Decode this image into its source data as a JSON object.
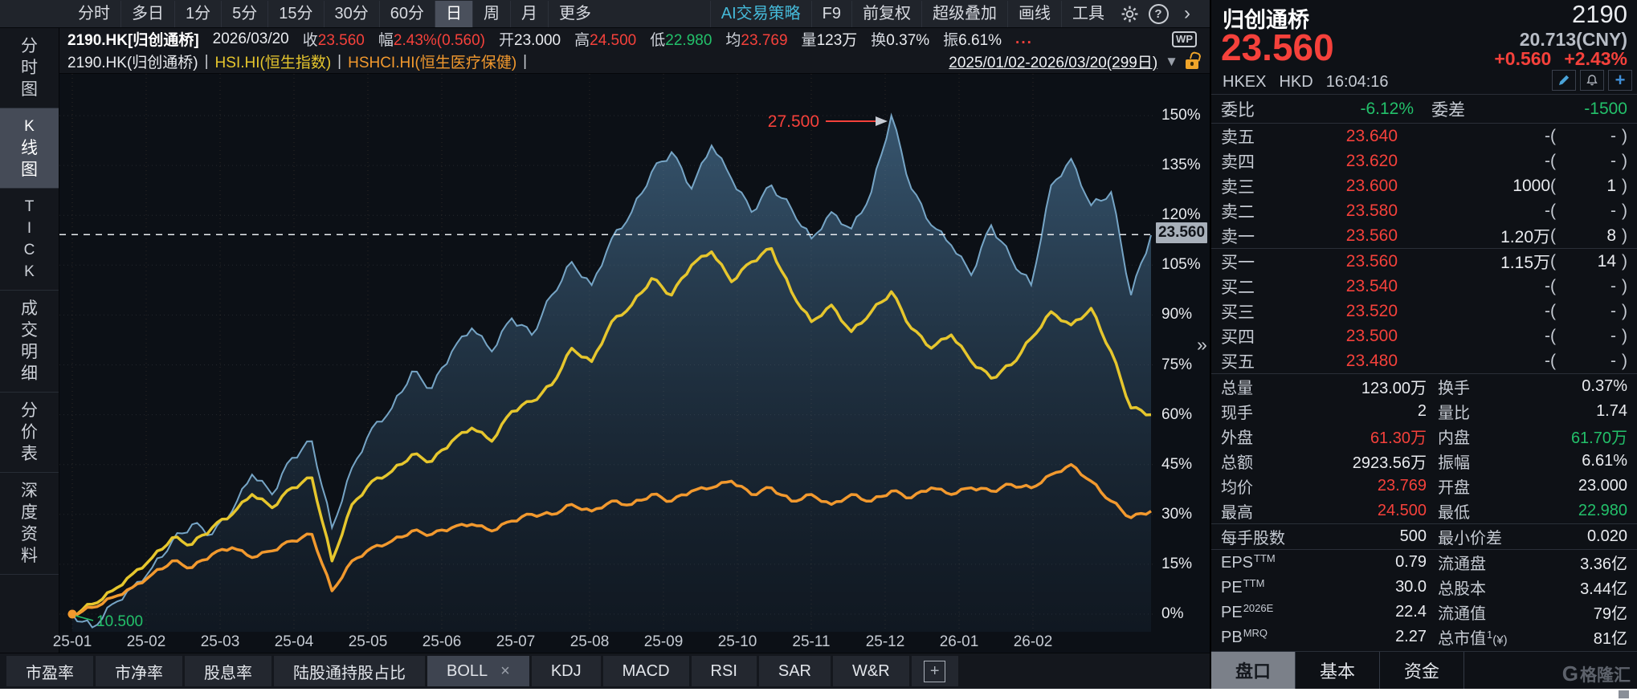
{
  "colors": {
    "red": "#f5413b",
    "green": "#23c06a",
    "white": "#e9ebef",
    "yellow": "#e6c62d",
    "orange": "#f2992e",
    "cyan": "#45b9d8",
    "gray": "#c6cbd3",
    "blue_line": "#76a5c6",
    "tag_bg": "#a8b0ba"
  },
  "toolbar_top": {
    "periods": [
      "分时",
      "多日",
      "1分",
      "5分",
      "15分",
      "30分",
      "60分",
      "日",
      "周",
      "月",
      "更多"
    ],
    "selected_period": "日",
    "actions": [
      "AI交易策略",
      "F9",
      "前复权",
      "超级叠加",
      "画线",
      "工具"
    ],
    "help_label": "?",
    "expand_label": "›"
  },
  "quote_bar": {
    "symbol": "2190.HK[归创通桥]",
    "date": "2026/03/20",
    "fields": [
      {
        "label": "收",
        "value": "23.560",
        "color": "red"
      },
      {
        "label": "幅",
        "value": "2.43%(0.560)",
        "color": "red"
      },
      {
        "label": "开",
        "value": "23.000",
        "color": "white"
      },
      {
        "label": "高",
        "value": "24.500",
        "color": "red"
      },
      {
        "label": "低",
        "value": "22.980",
        "color": "green"
      },
      {
        "label": "均",
        "value": "23.769",
        "color": "red"
      },
      {
        "label": "量",
        "value": "123万",
        "color": "white"
      },
      {
        "label": "换",
        "value": "0.37%",
        "color": "white"
      },
      {
        "label": "振",
        "value": "6.61%",
        "color": "white"
      }
    ],
    "more": "...",
    "wp_label": "WP"
  },
  "overlay_bar": {
    "items": [
      {
        "text": "2190.HK(归创通桥)",
        "color": "white"
      },
      {
        "text": "HSI.HI(恒生指数)",
        "color": "yellow"
      },
      {
        "text": "HSHCI.HI(恒生医疗保健)",
        "color": "orange"
      }
    ],
    "date_range": "2025/01/02-2026/03/20(299日)",
    "dropdown": "▼"
  },
  "sidebar": {
    "items": [
      "分时图",
      "K线图",
      "TICK",
      "成交明细",
      "分价表",
      "深度资料"
    ],
    "selected": "K线图"
  },
  "chart_data": {
    "type": "line",
    "title": "2190.HK vs HSI.HI vs HSHCI.HI cumulative % change",
    "x_labels": [
      "25-01",
      "25-02",
      "25-03",
      "25-04",
      "25-05",
      "25-06",
      "25-07",
      "25-08",
      "25-09",
      "25-10",
      "25-11",
      "25-12",
      "26-01",
      "26-02"
    ],
    "y_ticks": [
      "150%",
      "135%",
      "120%",
      "105%",
      "90%",
      "75%",
      "60%",
      "45%",
      "30%",
      "15%",
      "0%"
    ],
    "ylim": [
      -12,
      162
    ],
    "grid": "dotted",
    "series": [
      {
        "name": "2190.HK",
        "color": "#76a5c6",
        "area": true,
        "values": [
          0,
          -4,
          3,
          8,
          14,
          22,
          27,
          24,
          31,
          42,
          36,
          47,
          52,
          26,
          44,
          56,
          62,
          73,
          68,
          79,
          86,
          79,
          89,
          84,
          96,
          106,
          99,
          113,
          121,
          133,
          139,
          128,
          141,
          131,
          121,
          129,
          122,
          113,
          121,
          116,
          127,
          150,
          128,
          117,
          111,
          102,
          117,
          107,
          99,
          129,
          137,
          123,
          127,
          96,
          114
        ]
      },
      {
        "name": "HSI.HI",
        "color": "#e6c62d",
        "values": [
          0,
          3,
          7,
          12,
          17,
          23,
          21,
          26,
          30,
          36,
          32,
          38,
          41,
          16,
          33,
          40,
          43,
          48,
          46,
          52,
          56,
          52,
          61,
          64,
          69,
          80,
          76,
          88,
          93,
          101,
          96,
          105,
          109,
          100,
          106,
          110,
          97,
          88,
          93,
          85,
          91,
          97,
          86,
          80,
          84,
          76,
          71,
          75,
          83,
          91,
          87,
          92,
          79,
          62,
          60
        ]
      },
      {
        "name": "HSHCI.HI",
        "color": "#f2992e",
        "values": [
          0,
          2,
          5,
          8,
          12,
          16,
          14,
          18,
          20,
          17,
          19,
          22,
          24,
          7,
          16,
          20,
          22,
          25,
          24,
          26,
          27,
          25,
          28,
          30,
          30,
          33,
          31,
          34,
          33,
          36,
          34,
          37,
          38,
          40,
          36,
          38,
          34,
          36,
          33,
          36,
          34,
          37,
          35,
          38,
          36,
          38,
          37,
          39,
          38,
          42,
          45,
          40,
          34,
          29,
          31
        ]
      }
    ],
    "annotations": {
      "high_price": "27.500",
      "low_price": "10.500",
      "current_price": "23.560",
      "current_pct": 114.2
    }
  },
  "bottom_toolbar": {
    "items": [
      "市盈率",
      "市净率",
      "股息率",
      "陆股通持股占比",
      "BOLL",
      "KDJ",
      "MACD",
      "RSI",
      "SAR",
      "W&R"
    ],
    "selected": "BOLL",
    "close_label": "×",
    "add_label": "+"
  },
  "collapse_label": "»",
  "right_panel": {
    "header": {
      "name": "归创通桥",
      "code": "2190",
      "price": "23.560",
      "cny": "20.713(CNY)",
      "change": "+0.560",
      "change_pct": "+2.43%",
      "exchange": "HKEX",
      "currency": "HKD",
      "time": "16:04:16"
    },
    "weibi": {
      "label": "委比",
      "value": "-6.12%",
      "label2": "委差",
      "value2": "-1500"
    },
    "order_book": {
      "asks": [
        {
          "label": "卖五",
          "price": "23.640",
          "volume": "-",
          "count": "-"
        },
        {
          "label": "卖四",
          "price": "23.620",
          "volume": "-",
          "count": "-"
        },
        {
          "label": "卖三",
          "price": "23.600",
          "volume": "1000",
          "count": "1"
        },
        {
          "label": "卖二",
          "price": "23.580",
          "volume": "-",
          "count": "-"
        },
        {
          "label": "卖一",
          "price": "23.560",
          "volume": "1.20万",
          "count": "8"
        }
      ],
      "bids": [
        {
          "label": "买一",
          "price": "23.560",
          "volume": "1.15万",
          "count": "14"
        },
        {
          "label": "买二",
          "price": "23.540",
          "volume": "-",
          "count": "-"
        },
        {
          "label": "买三",
          "price": "23.520",
          "volume": "-",
          "count": "-"
        },
        {
          "label": "买四",
          "price": "23.500",
          "volume": "-",
          "count": "-"
        },
        {
          "label": "买五",
          "price": "23.480",
          "volume": "-",
          "count": "-"
        }
      ]
    },
    "stats": [
      {
        "l": "总量",
        "lv": "123.00万",
        "lc": "white",
        "r": "换手",
        "rv": "0.37%",
        "rc": "white"
      },
      {
        "l": "现手",
        "lv": "2",
        "lc": "white",
        "r": "量比",
        "rv": "1.74",
        "rc": "white"
      },
      {
        "l": "外盘",
        "lv": "61.30万",
        "lc": "red",
        "r": "内盘",
        "rv": "61.70万",
        "rc": "green"
      },
      {
        "l": "总额",
        "lv": "2923.56万",
        "lc": "white",
        "r": "振幅",
        "rv": "6.61%",
        "rc": "white"
      },
      {
        "l": "均价",
        "lv": "23.769",
        "lc": "red",
        "r": "开盘",
        "rv": "23.000",
        "rc": "white"
      },
      {
        "l": "最高",
        "lv": "24.500",
        "lc": "red",
        "r": "最低",
        "rv": "22.980",
        "rc": "green"
      },
      {
        "l": "每手股数",
        "lv": "500",
        "lc": "white",
        "r": "最小价差",
        "rv": "0.020",
        "rc": "white",
        "div": true
      },
      {
        "l": "EPS",
        "lsup": "TTM",
        "lv": "0.79",
        "lc": "white",
        "r": "流通盘",
        "rv": "3.36亿",
        "rc": "white",
        "div": true
      },
      {
        "l": "PE",
        "lsup": "TTM",
        "lv": "30.0",
        "lc": "white",
        "r": "总股本",
        "rv": "3.44亿",
        "rc": "white"
      },
      {
        "l": "PE",
        "lsup": "2026E",
        "lv": "22.4",
        "lc": "white",
        "r": "流通值",
        "rv": "79亿",
        "rc": "white"
      },
      {
        "l": "PB",
        "lsup": "MRQ",
        "lv": "2.27",
        "lc": "white",
        "r": "总市值",
        "rsup": "1",
        "rsfx": "(¥)",
        "rv": "81亿",
        "rc": "white"
      }
    ],
    "tabs": [
      "盘口",
      "基本",
      "资金"
    ],
    "selected_tab": "盘口",
    "watermark_g": "G",
    "watermark": "格隆汇"
  }
}
